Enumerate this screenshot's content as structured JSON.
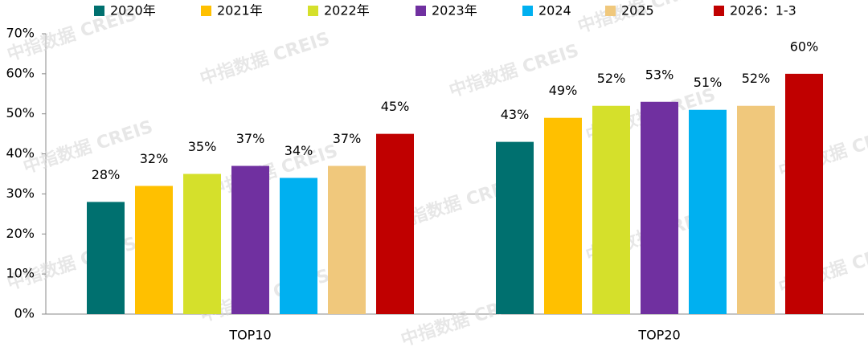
{
  "chart_data": {
    "type": "bar",
    "categories": [
      "TOP10",
      "TOP20"
    ],
    "series": [
      {
        "name": "2020年",
        "color": "#00706f",
        "values": [
          28,
          43
        ],
        "value_labels": [
          "28%",
          "43%"
        ]
      },
      {
        "name": "2021年",
        "color": "#ffc000",
        "values": [
          32,
          49
        ],
        "value_labels": [
          "32%",
          "49%"
        ]
      },
      {
        "name": "2022年",
        "color": "#d5e02b",
        "values": [
          35,
          52
        ],
        "value_labels": [
          "35%",
          "52%"
        ]
      },
      {
        "name": "2023年",
        "color": "#7030a0",
        "values": [
          37,
          53
        ],
        "value_labels": [
          "37%",
          "53%"
        ]
      },
      {
        "name": "2024",
        "color": "#00b0f0",
        "values": [
          34,
          51
        ],
        "value_labels": [
          "34%",
          "51%"
        ]
      },
      {
        "name": "2025",
        "color": "#f0c87c",
        "values": [
          37,
          52
        ],
        "value_labels": [
          "37%",
          "52%"
        ]
      },
      {
        "name": "2026：1-3",
        "color": "#c00000",
        "values": [
          45,
          60
        ],
        "value_labels": [
          "45%",
          "60%"
        ]
      }
    ],
    "ylim": [
      0,
      70
    ],
    "yticks": [
      {
        "value": 0,
        "label": "0%"
      },
      {
        "value": 10,
        "label": "10%"
      },
      {
        "value": 20,
        "label": "20%"
      },
      {
        "value": 30,
        "label": "30%"
      },
      {
        "value": 40,
        "label": "40%"
      },
      {
        "value": 50,
        "label": "50%"
      },
      {
        "value": 60,
        "label": "60%"
      },
      {
        "value": 70,
        "label": "70%"
      }
    ],
    "grid": false,
    "legend": "top",
    "watermark": "中指数据 CREIS"
  }
}
